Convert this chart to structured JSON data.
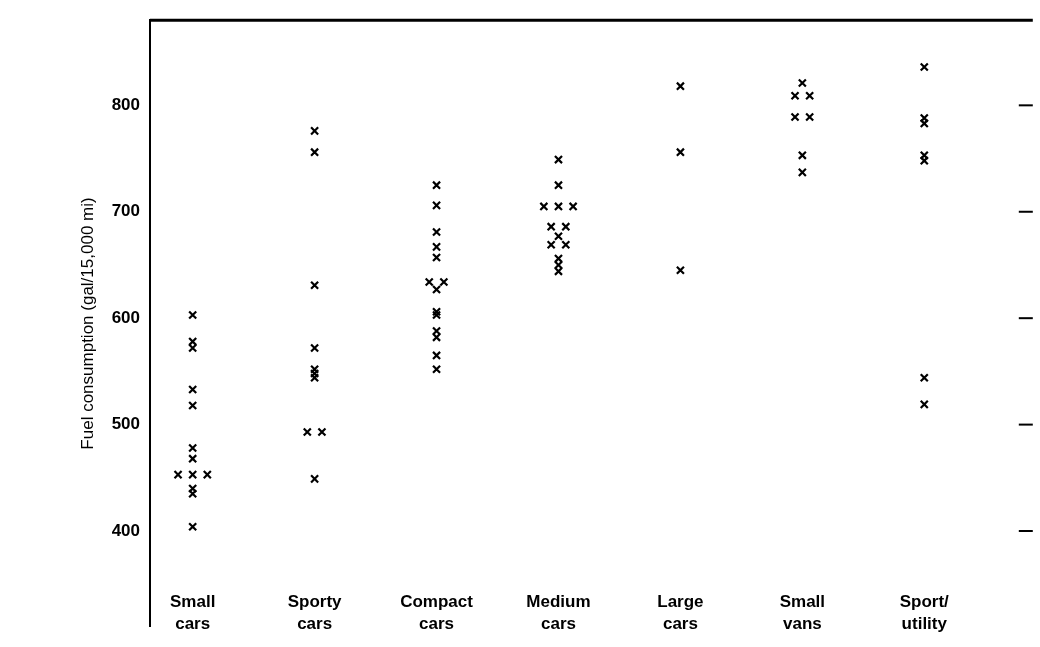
{
  "chart_data": {
    "type": "scatter",
    "ylabel": "Fuel consumption (gal/15,000 mi)",
    "categories": [
      "Small cars",
      "Sporty cars",
      "Compact cars",
      "Medium cars",
      "Large cars",
      "Small vans",
      "Sport/utility"
    ],
    "ylim": [
      310,
      880
    ],
    "yticks": [
      400,
      500,
      600,
      700,
      800
    ],
    "grid": false,
    "legend": false,
    "marker": "cross",
    "series": [
      {
        "color": "#000000",
        "x": [
          "Small cars",
          "Small cars",
          "Small cars",
          "Small cars",
          "Small cars",
          "Small cars",
          "Small cars",
          "Small cars",
          "Small cars",
          "Small cars",
          "Small cars",
          "Small cars",
          "Small cars"
        ],
        "values": [
          603,
          578,
          572,
          533,
          518,
          478,
          468,
          453,
          453,
          453,
          440,
          435,
          404
        ]
      },
      {
        "color": "#000000",
        "x": [
          "Sporty cars",
          "Sporty cars",
          "Sporty cars",
          "Sporty cars",
          "Sporty cars",
          "Sporty cars",
          "Sporty cars",
          "Sporty cars",
          "Sporty cars",
          "Sporty cars"
        ],
        "values": [
          776,
          756,
          631,
          572,
          552,
          548,
          544,
          493,
          493,
          449
        ]
      },
      {
        "color": "#000000",
        "x": [
          "Compact cars",
          "Compact cars",
          "Compact cars",
          "Compact cars",
          "Compact cars",
          "Compact cars",
          "Compact cars",
          "Compact cars",
          "Compact cars",
          "Compact cars",
          "Compact cars",
          "Compact cars",
          "Compact cars",
          "Compact cars"
        ],
        "values": [
          725,
          706,
          681,
          667,
          657,
          634,
          634,
          627,
          606,
          603,
          588,
          582,
          565,
          552
        ]
      },
      {
        "color": "#000000",
        "x": [
          "Medium cars",
          "Medium cars",
          "Medium cars",
          "Medium cars",
          "Medium cars",
          "Medium cars",
          "Medium cars",
          "Medium cars",
          "Medium cars",
          "Medium cars",
          "Medium cars",
          "Medium cars",
          "Medium cars"
        ],
        "values": [
          749,
          725,
          705,
          705,
          705,
          686,
          686,
          677,
          669,
          669,
          656,
          650,
          644
        ]
      },
      {
        "color": "#000000",
        "x": [
          "Large cars",
          "Large cars",
          "Large cars"
        ],
        "values": [
          818,
          756,
          645
        ]
      },
      {
        "color": "#000000",
        "x": [
          "Small vans",
          "Small vans",
          "Small vans",
          "Small vans",
          "Small vans",
          "Small vans",
          "Small vans"
        ],
        "values": [
          821,
          809,
          809,
          789,
          789,
          753,
          737
        ]
      },
      {
        "color": "#000000",
        "x": [
          "Sport/utility",
          "Sport/utility",
          "Sport/utility",
          "Sport/utility",
          "Sport/utility",
          "Sport/utility",
          "Sport/utility"
        ],
        "values": [
          836,
          788,
          783,
          753,
          748,
          544,
          519
        ]
      }
    ]
  }
}
